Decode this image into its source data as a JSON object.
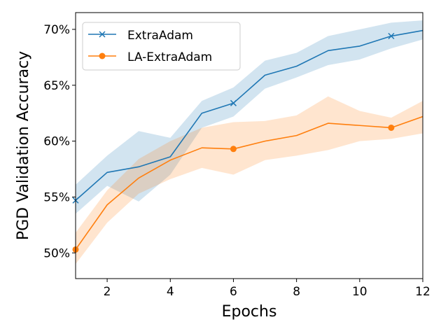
{
  "chart_data": {
    "type": "line",
    "xlabel": "Epochs",
    "ylabel": "PGD Validation Accuracy",
    "xlim": [
      1,
      12
    ],
    "ylim": [
      47.7,
      71.5
    ],
    "x_ticks": [
      2,
      4,
      6,
      8,
      10,
      12
    ],
    "x_tick_labels": [
      "2",
      "4",
      "6",
      "8",
      "10",
      "12"
    ],
    "y_ticks": [
      50,
      55,
      60,
      65,
      70
    ],
    "y_tick_labels": [
      "50%",
      "55%",
      "60%",
      "65%",
      "70%"
    ],
    "grid": false,
    "legend_position": "upper-left",
    "x": [
      1,
      2,
      3,
      4,
      5,
      6,
      7,
      8,
      9,
      10,
      11,
      12
    ],
    "series": [
      {
        "name": "ExtraAdam",
        "color": "#1f77b4",
        "marker": "x",
        "marker_every": 5,
        "values": [
          54.7,
          57.2,
          57.7,
          58.6,
          62.5,
          63.4,
          65.9,
          66.7,
          68.1,
          68.5,
          69.4,
          69.9
        ],
        "lower": [
          53.5,
          56.0,
          54.6,
          57.0,
          61.2,
          62.2,
          64.7,
          65.7,
          66.8,
          67.3,
          68.3,
          69.1
        ],
        "upper": [
          56.1,
          58.7,
          60.9,
          60.3,
          63.6,
          64.8,
          67.2,
          67.9,
          69.4,
          70.0,
          70.6,
          70.8
        ]
      },
      {
        "name": "LA-ExtraAdam",
        "color": "#ff7f0e",
        "marker": "o",
        "marker_every": 5,
        "values": [
          50.3,
          54.3,
          56.7,
          58.3,
          59.4,
          59.3,
          60.0,
          60.5,
          61.6,
          61.4,
          61.2,
          62.2
        ],
        "lower": [
          49.0,
          52.7,
          55.3,
          56.6,
          57.6,
          57.0,
          58.3,
          58.7,
          59.2,
          60.0,
          60.2,
          60.7
        ],
        "upper": [
          51.8,
          55.6,
          58.4,
          60.0,
          61.2,
          61.7,
          61.8,
          62.3,
          64.0,
          62.7,
          62.1,
          63.6
        ]
      }
    ]
  }
}
